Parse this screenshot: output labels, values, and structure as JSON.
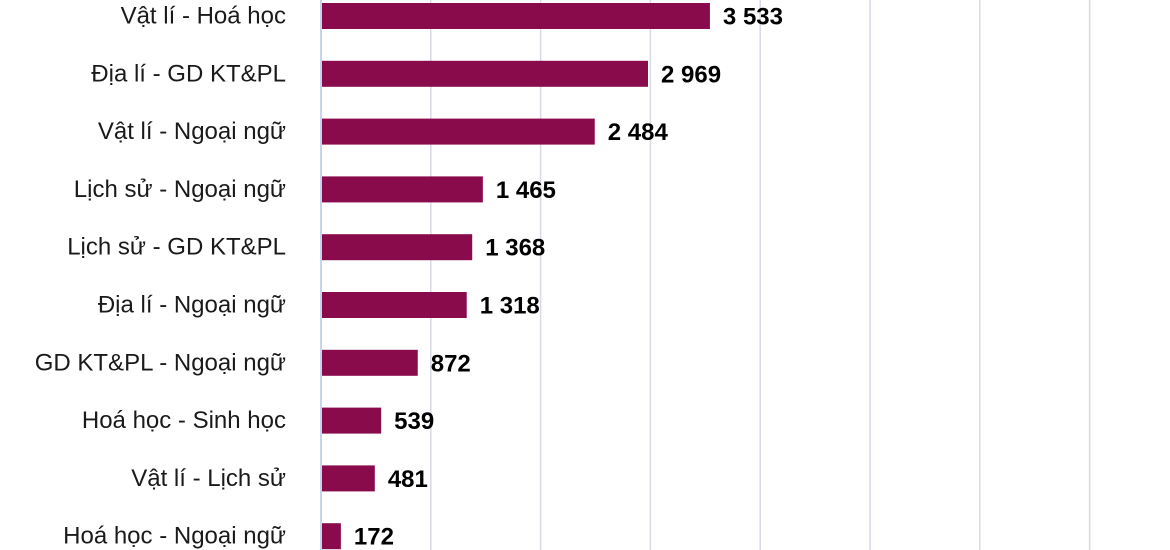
{
  "chart_data": {
    "type": "bar",
    "orientation": "horizontal",
    "categories": [
      "Vật lí - Hoá học",
      "Địa lí - GD KT&PL",
      "Vật lí - Ngoại ngữ",
      "Lịch sử - Ngoại ngữ",
      "Lịch sử - GD KT&PL",
      "Địa lí - Ngoại ngữ",
      "GD KT&PL - Ngoại ngữ",
      "Hoá học - Sinh học",
      "Vật lí - Lịch sử",
      "Hoá học - Ngoại ngữ"
    ],
    "values": [
      3533,
      2969,
      2484,
      1465,
      1368,
      1318,
      872,
      539,
      481,
      172
    ],
    "value_labels": [
      "3 533",
      "2 969",
      "2 484",
      "1 465",
      "1 368",
      "1 318",
      "872",
      "539",
      "481",
      "172"
    ],
    "xlim": [
      0,
      7000
    ],
    "grid": true,
    "legend": "none",
    "colors": {
      "bar": "#8a0b4c",
      "grid": "#d9d9e6",
      "axis": "#b4c6e7"
    }
  }
}
